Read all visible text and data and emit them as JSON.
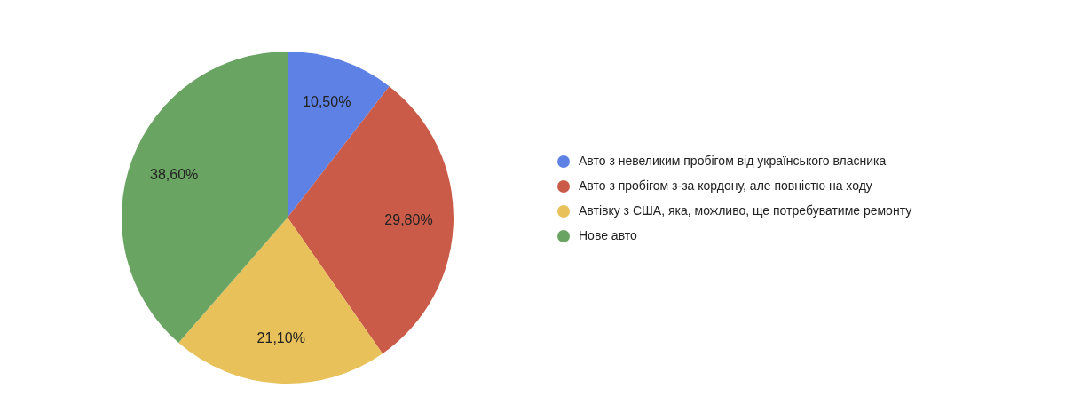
{
  "chart_data": {
    "type": "pie",
    "categories": [
      "Авто з невеликим пробігом від українського власника",
      "Авто з пробігом з-за кордону, але повністю на ходу",
      "Автівку з США, яка, можливо, ще потребуватиме ремонту",
      "Нове авто"
    ],
    "values": [
      10.5,
      29.8,
      21.1,
      38.6
    ],
    "colors": [
      "#5e81e6",
      "#c95b48",
      "#e9c15a",
      "#6aa463"
    ],
    "value_labels": [
      "10,50%",
      "29,80%",
      "21,10%",
      "38,60%"
    ],
    "legend": "right"
  }
}
